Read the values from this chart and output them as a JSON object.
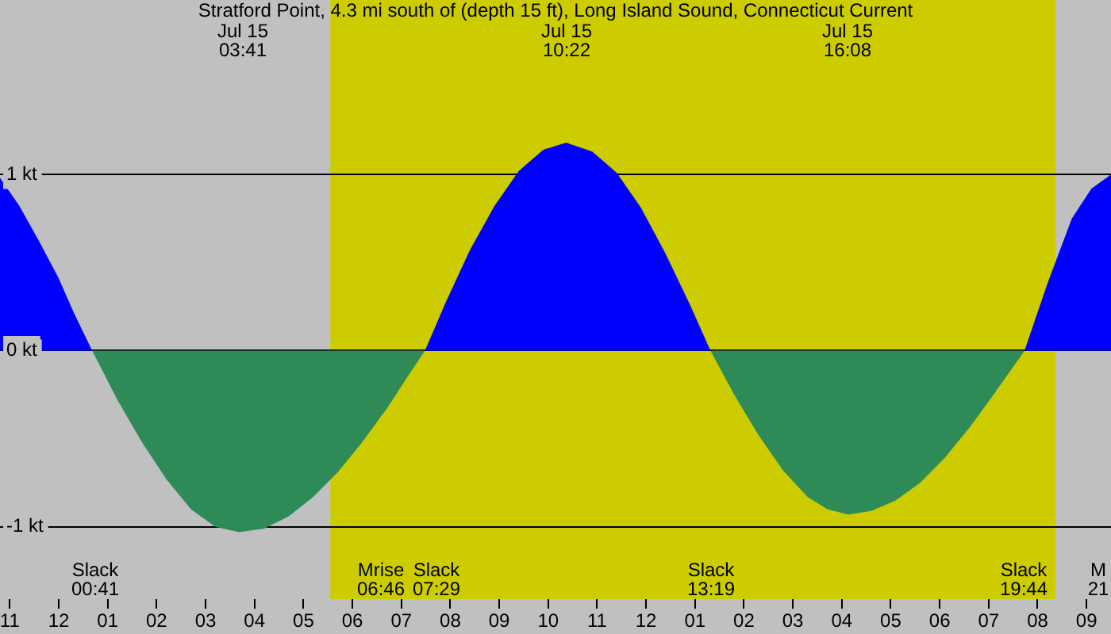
{
  "chart_data": {
    "type": "area",
    "title": "Stratford Point, 4.3 mi south of (depth 15 ft), Long Island Sound, Connecticut Current",
    "series": [
      {
        "color": "#0000ff",
        "x": [
          "--07-14T22:48",
          "--07-14T23:12",
          "--07-14T23:36",
          "--07-15T00:00",
          "--07-15T00:18",
          "--07-15T00:41",
          null,
          "--07-15T07:29",
          "--07-15T07:54",
          "--07-15T08:24",
          "--07-15T08:54",
          "--07-15T09:24",
          "--07-15T09:54",
          "--07-15T10:22",
          "--07-15T10:54",
          "--07-15T11:24",
          "--07-15T11:54",
          "--07-15T12:24",
          "--07-15T12:54",
          "--07-15T13:19",
          null,
          "--07-15T19:44",
          "--07-15T20:12",
          "--07-15T20:42",
          "--07-15T21:06",
          "--07-15T21:30"
        ],
        "values": [
          0.98,
          0.82,
          0.62,
          0.41,
          0.22,
          0,
          null,
          0,
          0.27,
          0.57,
          0.82,
          1.02,
          1.14,
          1.18,
          1.13,
          1.01,
          0.81,
          0.55,
          0.26,
          0,
          null,
          0,
          0.38,
          0.75,
          0.92,
          1.0
        ]
      },
      {
        "color": "#2e8b57",
        "x": [
          "--07-15T00:41",
          "--07-15T01:12",
          "--07-15T01:42",
          "--07-15T02:12",
          "--07-15T02:42",
          "--07-15T03:12",
          "--07-15T03:41",
          "--07-15T04:12",
          "--07-15T04:42",
          "--07-15T05:12",
          "--07-15T05:42",
          "--07-15T06:12",
          "--07-15T06:42",
          "--07-15T07:06",
          "--07-15T07:29",
          null,
          "--07-15T13:19",
          "--07-15T13:48",
          "--07-15T14:18",
          "--07-15T14:48",
          "--07-15T15:18",
          "--07-15T15:42",
          "--07-15T16:08",
          "--07-15T16:36",
          "--07-15T17:06",
          "--07-15T17:36",
          "--07-15T18:06",
          "--07-15T18:36",
          "--07-15T19:06",
          "--07-15T19:44"
        ],
        "values": [
          0,
          -0.28,
          -0.52,
          -0.73,
          -0.9,
          -1.0,
          -1.03,
          -1.01,
          -0.94,
          -0.83,
          -0.69,
          -0.52,
          -0.33,
          -0.16,
          0,
          null,
          0,
          -0.25,
          -0.48,
          -0.68,
          -0.83,
          -0.9,
          -0.93,
          -0.91,
          -0.85,
          -0.75,
          -0.61,
          -0.44,
          -0.25,
          0
        ]
      }
    ],
    "xlim": [
      "--07-14T22:48",
      "--07-15T21:30"
    ],
    "xticks": [
      {
        "value": "--07-14T23:00",
        "label": "11"
      },
      {
        "value": "--07-15T00:00",
        "label": "12"
      },
      {
        "value": "--07-15T01:00",
        "label": "01"
      },
      {
        "value": "--07-15T02:00",
        "label": "02"
      },
      {
        "value": "--07-15T03:00",
        "label": "03"
      },
      {
        "value": "--07-15T04:00",
        "label": "04"
      },
      {
        "value": "--07-15T05:00",
        "label": "05"
      },
      {
        "value": "--07-15T06:00",
        "label": "06"
      },
      {
        "value": "--07-15T07:00",
        "label": "07"
      },
      {
        "value": "--07-15T08:00",
        "label": "08"
      },
      {
        "value": "--07-15T09:00",
        "label": "09"
      },
      {
        "value": "--07-15T10:00",
        "label": "10"
      },
      {
        "value": "--07-15T11:00",
        "label": "11"
      },
      {
        "value": "--07-15T12:00",
        "label": "12"
      },
      {
        "value": "--07-15T13:00",
        "label": "01"
      },
      {
        "value": "--07-15T14:00",
        "label": "02"
      },
      {
        "value": "--07-15T15:00",
        "label": "03"
      },
      {
        "value": "--07-15T16:00",
        "label": "04"
      },
      {
        "value": "--07-15T17:00",
        "label": "05"
      },
      {
        "value": "--07-15T18:00",
        "label": "06"
      },
      {
        "value": "--07-15T19:00",
        "label": "07"
      },
      {
        "value": "--07-15T20:00",
        "label": "08"
      },
      {
        "value": "--07-15T21:00",
        "label": "09"
      }
    ],
    "ylim": [
      -1.41,
      1.99
    ],
    "yticks": [
      {
        "value": -1,
        "label": "-1 kt"
      },
      {
        "value": 0,
        "label": "0 kt"
      },
      {
        "value": 1,
        "label": "1 kt"
      }
    ],
    "grid": "y",
    "legend": false,
    "marker": "none",
    "bands": [
      {
        "axis": "x",
        "from": "--07-15T05:33",
        "to": "--07-15T20:22",
        "color": "#cccc00"
      }
    ],
    "annotations": [
      "Jul 15\n03:41",
      "Jul 15\n10:22",
      "Jul 15\n16:08",
      "Slack\n00:41",
      "Mrise\n06:46",
      "Slack\n07:29",
      "Slack\n13:19",
      "Slack\n19:44",
      "M\n21"
    ]
  }
}
